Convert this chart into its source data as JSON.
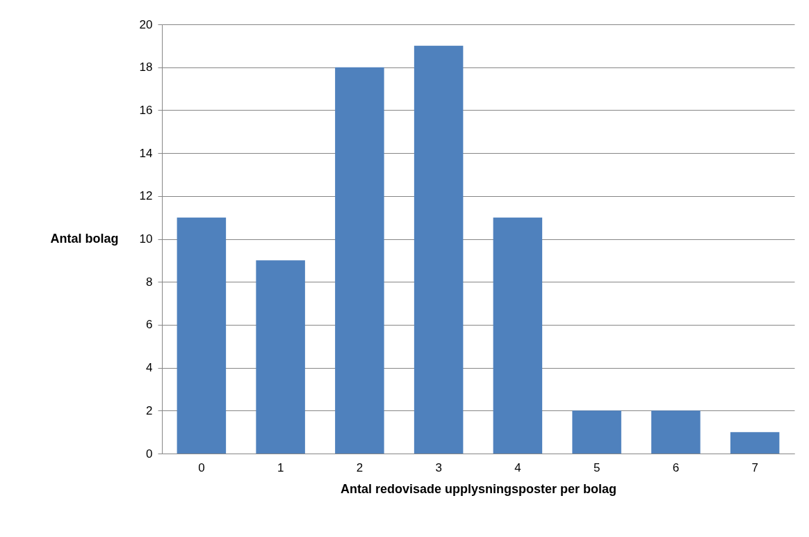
{
  "chart_data": {
    "type": "bar",
    "xlabel": "Antal redovisade upplysningsposter per bolag",
    "ylabel": "Antal bolag",
    "categories": [
      "0",
      "1",
      "2",
      "3",
      "4",
      "5",
      "6",
      "7"
    ],
    "series": [
      {
        "color": "#4f81bd",
        "values": [
          11,
          9,
          18,
          19,
          11,
          2,
          2,
          1
        ]
      }
    ],
    "ylim": [
      0,
      20
    ],
    "yticks": [
      0,
      2,
      4,
      6,
      8,
      10,
      12,
      14,
      16,
      18,
      20
    ],
    "grid": "y",
    "legend": false
  }
}
